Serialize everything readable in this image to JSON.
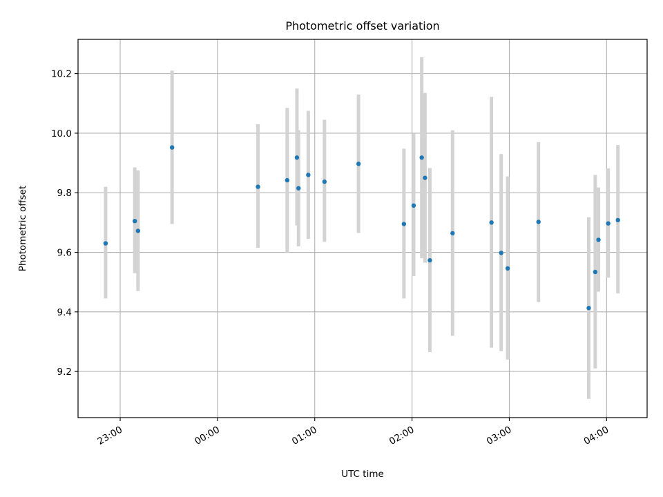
{
  "chart_data": {
    "type": "scatter",
    "title": "Photometric offset variation",
    "xlabel": "UTC time",
    "ylabel": "Photometric offset",
    "x_axis_kind": "time",
    "xlim": [
      "22:34",
      "04:25"
    ],
    "ylim": [
      9.045,
      10.315
    ],
    "x_ticks": [
      "23:00",
      "00:00",
      "01:00",
      "02:00",
      "03:00",
      "04:00"
    ],
    "y_ticks": [
      "9.2",
      "9.4",
      "9.6",
      "9.8",
      "10.0",
      "10.2"
    ],
    "grid": true,
    "x_tick_rotation_deg": 30,
    "colors": {
      "point": "#1f77b4",
      "errorbar": "#d3d3d3",
      "grid": "#b0b0b0"
    },
    "points": [
      {
        "t": "22:51",
        "y": 9.63,
        "lo": 9.445,
        "hi": 9.82
      },
      {
        "t": "23:09",
        "y": 9.705,
        "lo": 9.53,
        "hi": 9.885
      },
      {
        "t": "23:11",
        "y": 9.672,
        "lo": 9.47,
        "hi": 9.875
      },
      {
        "t": "23:32",
        "y": 9.952,
        "lo": 9.695,
        "hi": 10.21
      },
      {
        "t": "00:25",
        "y": 9.82,
        "lo": 9.615,
        "hi": 10.03
      },
      {
        "t": "00:43",
        "y": 9.842,
        "lo": 9.6,
        "hi": 10.085
      },
      {
        "t": "00:49",
        "y": 9.918,
        "lo": 9.69,
        "hi": 10.15
      },
      {
        "t": "00:50",
        "y": 9.815,
        "lo": 9.62,
        "hi": 10.01
      },
      {
        "t": "00:56",
        "y": 9.86,
        "lo": 9.645,
        "hi": 10.075
      },
      {
        "t": "01:06",
        "y": 9.837,
        "lo": 9.635,
        "hi": 10.045
      },
      {
        "t": "01:27",
        "y": 9.897,
        "lo": 9.665,
        "hi": 10.13
      },
      {
        "t": "01:55",
        "y": 9.695,
        "lo": 9.445,
        "hi": 9.948
      },
      {
        "t": "02:01",
        "y": 9.757,
        "lo": 9.52,
        "hi": 9.998
      },
      {
        "t": "02:06",
        "y": 9.918,
        "lo": 9.58,
        "hi": 10.255
      },
      {
        "t": "02:08",
        "y": 9.85,
        "lo": 9.565,
        "hi": 10.135
      },
      {
        "t": "02:11",
        "y": 9.573,
        "lo": 9.265,
        "hi": 9.883
      },
      {
        "t": "02:25",
        "y": 9.664,
        "lo": 9.32,
        "hi": 10.01
      },
      {
        "t": "02:49",
        "y": 9.7,
        "lo": 9.28,
        "hi": 10.122
      },
      {
        "t": "02:55",
        "y": 9.598,
        "lo": 9.268,
        "hi": 9.93
      },
      {
        "t": "02:59",
        "y": 9.546,
        "lo": 9.24,
        "hi": 9.855
      },
      {
        "t": "03:18",
        "y": 9.702,
        "lo": 9.433,
        "hi": 9.97
      },
      {
        "t": "03:49",
        "y": 9.413,
        "lo": 9.108,
        "hi": 9.718
      },
      {
        "t": "03:53",
        "y": 9.534,
        "lo": 9.21,
        "hi": 9.86
      },
      {
        "t": "03:55",
        "y": 9.642,
        "lo": 9.468,
        "hi": 9.818
      },
      {
        "t": "04:01",
        "y": 9.697,
        "lo": 9.515,
        "hi": 9.882
      },
      {
        "t": "04:07",
        "y": 9.708,
        "lo": 9.462,
        "hi": 9.96
      }
    ]
  }
}
